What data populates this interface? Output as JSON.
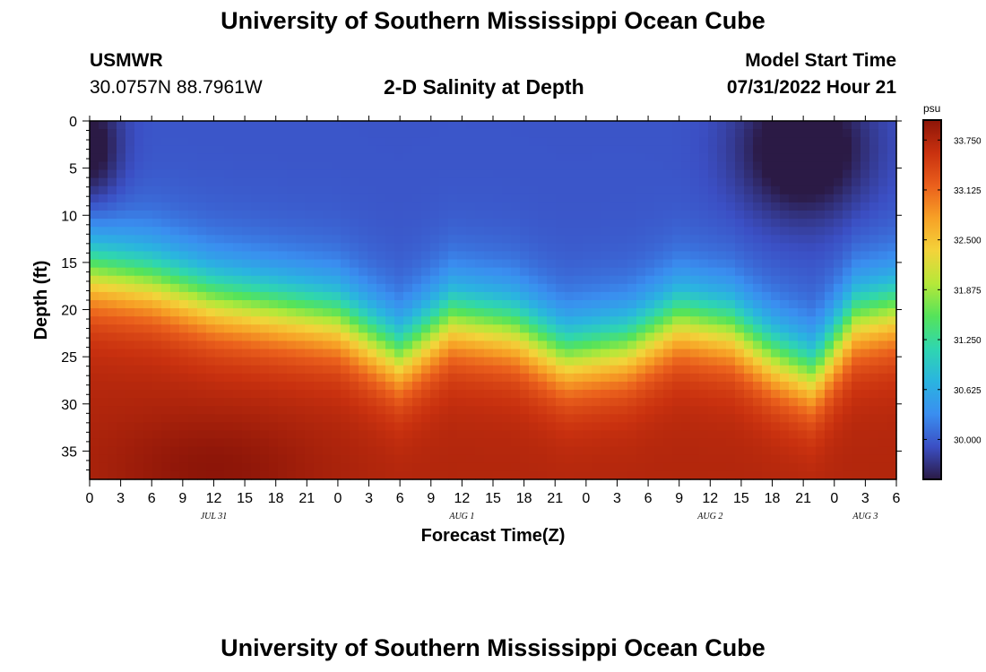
{
  "header": {
    "title": "University of Southern Mississippi Ocean Cube",
    "station": "USMWR",
    "coordinates": "30.0757N  88.7961W",
    "subtitle": "2-D Salinity at Depth",
    "start_label": "Model Start Time",
    "start_value": "07/31/2022 Hour 21"
  },
  "footer": {
    "title": "University of Southern Mississippi Ocean Cube"
  },
  "chart_data": {
    "type": "heatmap",
    "title": "2-D Salinity at Depth",
    "xlabel": "Forecast Time(Z)",
    "ylabel": "Depth (ft)",
    "xlim": [
      0,
      78
    ],
    "ylim": [
      38,
      0
    ],
    "x_ticks": [
      {
        "hour": 0,
        "label": "0"
      },
      {
        "hour": 3,
        "label": "3"
      },
      {
        "hour": 6,
        "label": "6"
      },
      {
        "hour": 9,
        "label": "9"
      },
      {
        "hour": 12,
        "label": "12"
      },
      {
        "hour": 15,
        "label": "15"
      },
      {
        "hour": 18,
        "label": "18"
      },
      {
        "hour": 21,
        "label": "21"
      },
      {
        "hour": 24,
        "label": "0"
      },
      {
        "hour": 27,
        "label": "3"
      },
      {
        "hour": 30,
        "label": "6"
      },
      {
        "hour": 33,
        "label": "9"
      },
      {
        "hour": 36,
        "label": "12"
      },
      {
        "hour": 39,
        "label": "15"
      },
      {
        "hour": 42,
        "label": "18"
      },
      {
        "hour": 45,
        "label": "21"
      },
      {
        "hour": 48,
        "label": "0"
      },
      {
        "hour": 51,
        "label": "3"
      },
      {
        "hour": 54,
        "label": "6"
      },
      {
        "hour": 57,
        "label": "9"
      },
      {
        "hour": 60,
        "label": "12"
      },
      {
        "hour": 63,
        "label": "15"
      },
      {
        "hour": 66,
        "label": "18"
      },
      {
        "hour": 69,
        "label": "21"
      },
      {
        "hour": 72,
        "label": "0"
      },
      {
        "hour": 75,
        "label": "3"
      },
      {
        "hour": 78,
        "label": "6"
      }
    ],
    "date_labels": [
      {
        "hour": 12,
        "label": "JUL 31"
      },
      {
        "hour": 36,
        "label": "AUG 1"
      },
      {
        "hour": 60,
        "label": "AUG 2"
      },
      {
        "hour": 75,
        "label": "AUG 3"
      }
    ],
    "y_ticks": [
      0,
      5,
      10,
      15,
      20,
      25,
      30,
      35
    ],
    "colorbar": {
      "unit": "psu",
      "min": 29.5,
      "max": 34.0,
      "ticks": [
        "33.750",
        "33.125",
        "32.500",
        "31.875",
        "31.250",
        "30.625",
        "30.000"
      ],
      "colors": [
        "#2b1a45",
        "#3b4fc4",
        "#3a8ef0",
        "#2ab4e0",
        "#2fd6b0",
        "#55e35a",
        "#b6e839",
        "#f3d33a",
        "#f7a126",
        "#ea5f1c",
        "#c9310f",
        "#8c1508"
      ]
    },
    "field_description_salinity_psu": {
      "surface_layer": "approx 29.6-30.2 psu (0-12 ft), darkest near hours 0-2 and 66-72",
      "halocline_depth_ft": [
        {
          "hour": 0,
          "depth": 16
        },
        {
          "hour": 6,
          "depth": 17
        },
        {
          "hour": 12,
          "depth": 19
        },
        {
          "hour": 18,
          "depth": 20
        },
        {
          "hour": 24,
          "depth": 21
        },
        {
          "hour": 30,
          "depth": 25
        },
        {
          "hour": 35,
          "depth": 21
        },
        {
          "hour": 41,
          "depth": 22
        },
        {
          "hour": 46,
          "depth": 25
        },
        {
          "hour": 52,
          "depth": 24
        },
        {
          "hour": 57,
          "depth": 21
        },
        {
          "hour": 62,
          "depth": 22
        },
        {
          "hour": 66,
          "depth": 25
        },
        {
          "hour": 70,
          "depth": 27
        },
        {
          "hour": 74,
          "depth": 21
        },
        {
          "hour": 78,
          "depth": 20
        }
      ],
      "bottom_layer": "approx 33.5-33.9 psu (30-38 ft), maximum near hour 12"
    }
  }
}
